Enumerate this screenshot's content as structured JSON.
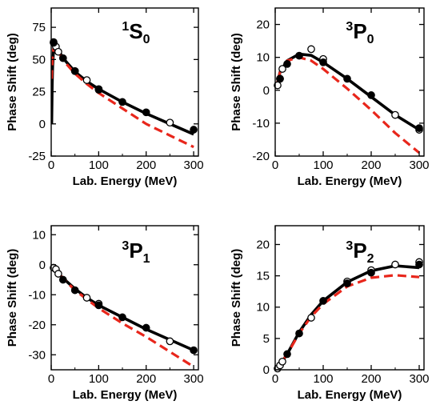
{
  "chart_data": [
    {
      "type": "line",
      "title": {
        "sup": "1",
        "main": "S",
        "sub": "0"
      },
      "xlabel": "Lab. Energy (MeV)",
      "ylabel": "Phase Shift (deg)",
      "xlim": [
        0,
        310
      ],
      "ylim": [
        -25,
        90
      ],
      "xticks": [
        0,
        100,
        200,
        300
      ],
      "yticks": [
        -25,
        0,
        25,
        50,
        75
      ],
      "series": [
        {
          "style": "solid",
          "color": "#000000",
          "x": [
            1,
            2,
            3,
            5,
            10,
            25,
            50,
            75,
            100,
            150,
            200,
            250,
            300
          ],
          "y": [
            0,
            30,
            45,
            58,
            61,
            51,
            40.5,
            33,
            27,
            17,
            8,
            0,
            -8
          ]
        },
        {
          "style": "dashed",
          "color": "#e8261b",
          "x": [
            1,
            2,
            3,
            5,
            10,
            25,
            50,
            75,
            100,
            150,
            200,
            250,
            300
          ],
          "y": [
            35,
            45,
            52,
            59,
            60,
            49.5,
            39,
            31,
            24,
            12,
            0,
            -9,
            -18
          ]
        },
        {
          "marker": "open-circle",
          "x": [
            5,
            10,
            15,
            50,
            75,
            100,
            250
          ],
          "y": [
            63.5,
            60,
            56,
            41,
            34,
            27,
            1
          ]
        },
        {
          "marker": "filled-circle",
          "x": [
            5,
            25,
            50,
            100,
            150,
            200,
            300
          ],
          "y": [
            63,
            51,
            41,
            26.5,
            17,
            9,
            -4.5
          ]
        }
      ]
    },
    {
      "type": "line",
      "title": {
        "sup": "3",
        "main": "P",
        "sub": "0"
      },
      "xlabel": "Lab. Energy (MeV)",
      "ylabel": "Phase Shift (deg)",
      "xlim": [
        0,
        310
      ],
      "ylim": [
        -20,
        25
      ],
      "xticks": [
        0,
        100,
        200,
        300
      ],
      "yticks": [
        -20,
        -10,
        0,
        10,
        20
      ],
      "series": [
        {
          "style": "solid",
          "color": "#000000",
          "x": [
            1,
            5,
            10,
            25,
            50,
            75,
            100,
            150,
            200,
            250,
            300
          ],
          "y": [
            0.5,
            2.5,
            5.5,
            9,
            11,
            10.6,
            8.5,
            3.5,
            -2,
            -7.5,
            -12
          ]
        },
        {
          "style": "dashed",
          "color": "#e8261b",
          "x": [
            1,
            5,
            10,
            25,
            50,
            75,
            100,
            150,
            200,
            250,
            300
          ],
          "y": [
            0.5,
            2.5,
            5.5,
            9,
            10,
            9,
            6.5,
            0.5,
            -6,
            -13,
            -19
          ]
        },
        {
          "marker": "open-circle",
          "x": [
            5,
            10,
            15,
            75,
            100,
            250,
            300
          ],
          "y": [
            1.5,
            3.5,
            6.5,
            12.5,
            9.5,
            -7.5,
            -12
          ]
        },
        {
          "marker": "filled-circle",
          "x": [
            10,
            25,
            50,
            100,
            150,
            200,
            300
          ],
          "y": [
            3.5,
            8,
            10.5,
            8.5,
            3.5,
            -1.5,
            -11.5
          ]
        }
      ]
    },
    {
      "type": "line",
      "title": {
        "sup": "3",
        "main": "P",
        "sub": "1"
      },
      "xlabel": "Lab. Energy (MeV)",
      "ylabel": "Phase Shift (deg)",
      "xlim": [
        0,
        310
      ],
      "ylim": [
        -35,
        13
      ],
      "xticks": [
        0,
        100,
        200,
        300
      ],
      "yticks": [
        -30,
        -20,
        -10,
        0,
        10
      ],
      "series": [
        {
          "style": "solid",
          "color": "#000000",
          "x": [
            1,
            5,
            10,
            25,
            50,
            75,
            100,
            150,
            200,
            250,
            300
          ],
          "y": [
            0,
            -1,
            -2,
            -4.5,
            -8,
            -11,
            -13.5,
            -17.5,
            -21.5,
            -25,
            -28.5
          ]
        },
        {
          "style": "dashed",
          "color": "#e8261b",
          "x": [
            1,
            5,
            10,
            25,
            50,
            75,
            100,
            150,
            200,
            250,
            300
          ],
          "y": [
            0,
            -1,
            -2,
            -4.5,
            -8.5,
            -11.5,
            -14.5,
            -19.5,
            -24,
            -29,
            -34
          ]
        },
        {
          "marker": "open-circle",
          "x": [
            5,
            10,
            15,
            75,
            100,
            250
          ],
          "y": [
            -1,
            -1.5,
            -3,
            -11,
            -13,
            -25.5
          ]
        },
        {
          "marker": "filled-circle",
          "x": [
            25,
            50,
            100,
            150,
            200,
            300
          ],
          "y": [
            -5,
            -8.5,
            -13.5,
            -17.5,
            -21,
            -28.5
          ]
        }
      ]
    },
    {
      "type": "line",
      "title": {
        "sup": "3",
        "main": "P",
        "sub": "2"
      },
      "xlabel": "Lab. Energy (MeV)",
      "ylabel": "Phase Shift (deg)",
      "xlim": [
        0,
        310
      ],
      "ylim": [
        0,
        23
      ],
      "xticks": [
        0,
        100,
        200,
        300
      ],
      "yticks": [
        0,
        5,
        10,
        15,
        20
      ],
      "series": [
        {
          "style": "solid",
          "color": "#000000",
          "x": [
            1,
            5,
            10,
            25,
            50,
            75,
            100,
            150,
            200,
            250,
            300
          ],
          "y": [
            0,
            0.3,
            0.8,
            2.5,
            6,
            8.8,
            11,
            14,
            15.8,
            16.6,
            16.3
          ]
        },
        {
          "style": "dashed",
          "color": "#e8261b",
          "x": [
            1,
            5,
            10,
            25,
            50,
            75,
            100,
            150,
            200,
            250,
            300
          ],
          "y": [
            0,
            0.3,
            0.8,
            2.5,
            5.8,
            8.5,
            10.5,
            13.3,
            14.7,
            15.1,
            14.8
          ]
        },
        {
          "marker": "open-circle",
          "x": [
            5,
            10,
            15,
            75,
            150,
            200,
            250,
            300
          ],
          "y": [
            0.2,
            0.7,
            1.3,
            8.3,
            14.1,
            15.9,
            16.8,
            17.2
          ]
        },
        {
          "marker": "filled-circle",
          "x": [
            25,
            50,
            100,
            150,
            200,
            300
          ],
          "y": [
            2.5,
            5.8,
            11,
            13.8,
            15.5,
            16.8
          ]
        }
      ]
    }
  ]
}
